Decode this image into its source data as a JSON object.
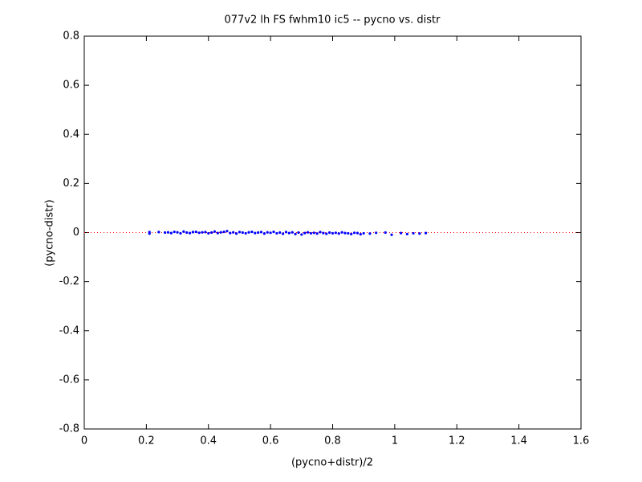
{
  "chart_data": {
    "type": "scatter",
    "title": "077v2 lh FS fwhm10 ic5 -- pycno vs. distr",
    "xlabel": "(pycno+distr)/2",
    "ylabel": "(pycno-distr)",
    "xlim": [
      0,
      1.6
    ],
    "ylim": [
      -0.8,
      0.8
    ],
    "xticks": [
      0,
      0.2,
      0.4,
      0.6,
      0.8,
      1,
      1.2,
      1.4,
      1.6
    ],
    "yticks": [
      -0.8,
      -0.6,
      -0.4,
      -0.2,
      0,
      0.2,
      0.4,
      0.6,
      0.8
    ],
    "reference_line": {
      "y": 0,
      "color": "#ff0000"
    },
    "series": [
      {
        "color": "#0000ff",
        "x": [
          0.21,
          0.21,
          0.24,
          0.26,
          0.27,
          0.28,
          0.29,
          0.3,
          0.31,
          0.32,
          0.33,
          0.34,
          0.35,
          0.36,
          0.37,
          0.38,
          0.39,
          0.4,
          0.41,
          0.42,
          0.43,
          0.44,
          0.45,
          0.46,
          0.47,
          0.48,
          0.49,
          0.5,
          0.51,
          0.52,
          0.53,
          0.54,
          0.55,
          0.56,
          0.57,
          0.58,
          0.59,
          0.6,
          0.61,
          0.62,
          0.63,
          0.64,
          0.65,
          0.66,
          0.67,
          0.68,
          0.69,
          0.7,
          0.71,
          0.72,
          0.73,
          0.74,
          0.75,
          0.76,
          0.77,
          0.78,
          0.79,
          0.8,
          0.81,
          0.82,
          0.83,
          0.84,
          0.85,
          0.86,
          0.87,
          0.88,
          0.89,
          0.9,
          0.92,
          0.94,
          0.97,
          0.99,
          1.02,
          1.04,
          1.06,
          1.08,
          1.1
        ],
        "y": [
          0.002,
          -0.004,
          0.002,
          0.0,
          0.001,
          -0.002,
          0.003,
          0.001,
          -0.003,
          0.004,
          0.0,
          -0.002,
          0.002,
          0.003,
          -0.001,
          0.001,
          0.002,
          -0.003,
          0.0,
          0.004,
          -0.002,
          0.001,
          0.003,
          0.006,
          -0.002,
          0.001,
          -0.004,
          0.002,
          0.0,
          -0.003,
          0.001,
          0.003,
          -0.002,
          0.0,
          0.002,
          -0.004,
          0.001,
          -0.001,
          0.003,
          -0.003,
          0.0,
          -0.005,
          0.002,
          -0.002,
          0.001,
          -0.006,
          0.0,
          -0.008,
          -0.002,
          0.001,
          -0.003,
          -0.001,
          -0.004,
          0.002,
          -0.002,
          -0.005,
          0.0,
          -0.003,
          -0.001,
          -0.004,
          0.001,
          -0.002,
          -0.003,
          -0.006,
          -0.001,
          -0.002,
          -0.007,
          -0.003,
          -0.004,
          -0.001,
          0.0,
          -0.009,
          -0.002,
          -0.006,
          -0.003,
          -0.004,
          -0.002
        ]
      }
    ]
  }
}
